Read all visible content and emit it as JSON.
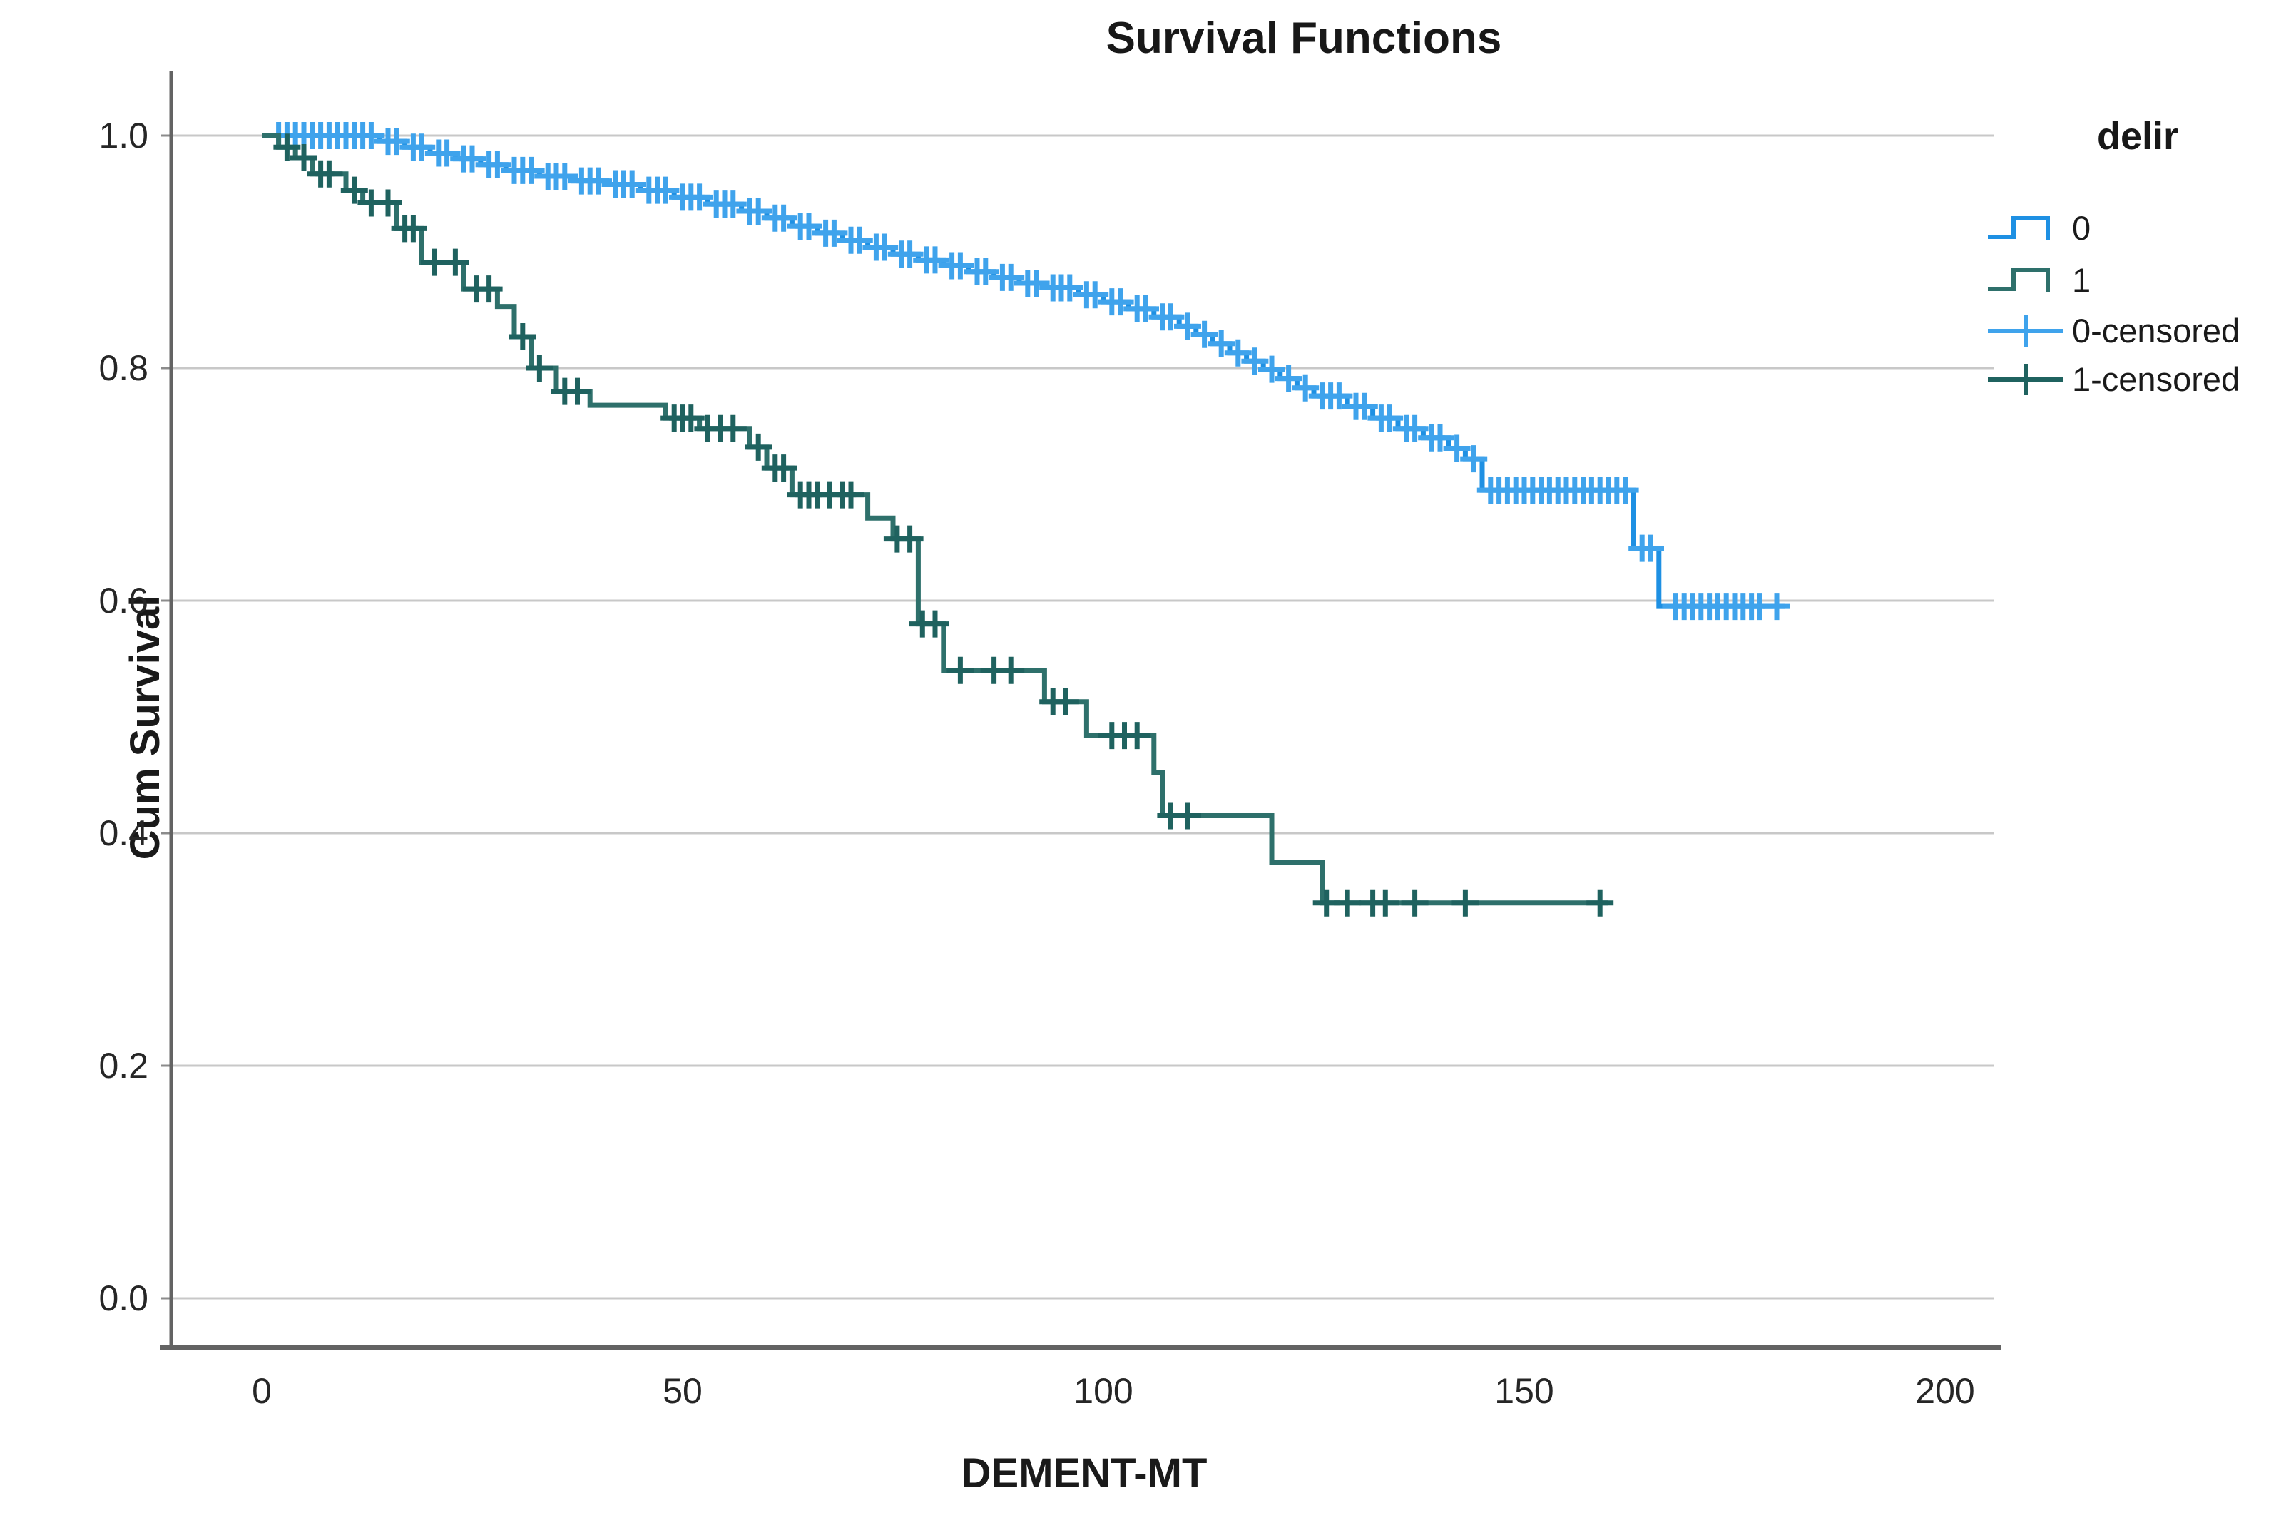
{
  "chart_data": {
    "type": "line",
    "subtype": "kaplan-meier-step",
    "title": "Survival Functions",
    "xlabel": "DEMENT-MT",
    "ylabel": "Cum Survival",
    "legend_title": "delir",
    "x_tick_labels": [
      "0",
      "50",
      "100",
      "150",
      "200"
    ],
    "x_tick_values": [
      0,
      50,
      100,
      150,
      200
    ],
    "y_tick_labels": [
      "1.0",
      "0.8",
      "0.6",
      "0.4",
      "0.2",
      "0.0"
    ],
    "y_tick_values": [
      1.0,
      0.8,
      0.6,
      0.4,
      0.2,
      0.0
    ],
    "xlim": [
      0,
      206
    ],
    "ylim": [
      0.0,
      1.04
    ],
    "grid": "horizontal",
    "legend_position": "right",
    "colors": {
      "grid": "#c8c8c8",
      "axis": "#636363",
      "text": "#1a1a1a",
      "series0": "#1E90E3",
      "series0_censor": "#3FA3EC",
      "series1": "#2E706B",
      "series1_censor": "#1F625F"
    },
    "legend": [
      {
        "label": "0",
        "marker": "step-line",
        "color_key": "series0"
      },
      {
        "label": "1",
        "marker": "step-line",
        "color_key": "series1"
      },
      {
        "label": "0-censored",
        "marker": "plus",
        "color_key": "series0_censor"
      },
      {
        "label": "1-censored",
        "marker": "plus",
        "color_key": "series1_censor"
      }
    ],
    "series": [
      {
        "name": "0",
        "color_key": "series0",
        "censor_color_key": "series0_censor",
        "end_t": 181,
        "steps": [
          [
            0,
            1.0
          ],
          [
            14,
            0.995
          ],
          [
            17,
            0.99
          ],
          [
            20,
            0.985
          ],
          [
            23,
            0.98
          ],
          [
            26,
            0.975
          ],
          [
            29,
            0.97
          ],
          [
            33,
            0.965
          ],
          [
            37,
            0.961
          ],
          [
            41,
            0.958
          ],
          [
            45,
            0.953
          ],
          [
            49,
            0.947
          ],
          [
            53,
            0.941
          ],
          [
            57,
            0.935
          ],
          [
            60,
            0.929
          ],
          [
            63,
            0.922
          ],
          [
            66,
            0.916
          ],
          [
            69,
            0.91
          ],
          [
            72,
            0.904
          ],
          [
            75,
            0.898
          ],
          [
            78,
            0.893
          ],
          [
            81,
            0.888
          ],
          [
            84,
            0.883
          ],
          [
            87,
            0.878
          ],
          [
            90,
            0.873
          ],
          [
            93,
            0.869
          ],
          [
            97,
            0.863
          ],
          [
            100,
            0.857
          ],
          [
            103,
            0.851
          ],
          [
            106,
            0.844
          ],
          [
            109,
            0.836
          ],
          [
            111,
            0.829
          ],
          [
            113,
            0.821
          ],
          [
            115,
            0.813
          ],
          [
            117,
            0.806
          ],
          [
            119,
            0.799
          ],
          [
            121,
            0.791
          ],
          [
            123,
            0.783
          ],
          [
            125,
            0.776
          ],
          [
            129,
            0.767
          ],
          [
            132,
            0.757
          ],
          [
            135,
            0.748
          ],
          [
            138,
            0.74
          ],
          [
            141,
            0.731
          ],
          [
            143,
            0.722
          ],
          [
            145,
            0.695
          ],
          [
            163,
            0.645
          ],
          [
            166,
            0.595
          ]
        ],
        "censors": [
          2,
          3,
          4,
          5,
          6,
          7,
          8,
          9,
          10,
          11,
          12,
          13,
          15,
          16,
          18,
          19,
          21,
          22,
          24,
          25,
          27,
          28,
          30,
          31,
          32,
          34,
          35,
          36,
          38,
          39,
          40,
          42,
          43,
          44,
          46,
          47,
          48,
          50,
          51,
          52,
          54,
          55,
          56,
          58,
          59,
          61,
          62,
          64,
          65,
          67,
          68,
          70,
          71,
          73,
          74,
          76,
          77,
          79,
          80,
          82,
          83,
          85,
          86,
          88,
          89,
          91,
          92,
          94,
          95,
          96,
          98,
          99,
          101,
          102,
          104,
          105,
          107,
          108,
          110,
          112,
          114,
          116,
          118,
          120,
          122,
          124,
          126,
          127,
          128,
          130,
          131,
          133,
          134,
          136,
          137,
          139,
          140,
          142,
          144,
          146,
          147,
          148,
          149,
          150,
          151,
          152,
          153,
          154,
          155,
          156,
          157,
          158,
          159,
          160,
          161,
          162,
          164,
          165,
          168,
          169,
          170,
          171,
          172,
          173,
          174,
          175,
          176,
          177,
          178,
          180
        ]
      },
      {
        "name": "1",
        "color_key": "series1",
        "censor_color_key": "series1_censor",
        "end_t": 160,
        "steps": [
          [
            0,
            1.0
          ],
          [
            2,
            0.99
          ],
          [
            4,
            0.981
          ],
          [
            6,
            0.967
          ],
          [
            10,
            0.953
          ],
          [
            12,
            0.942
          ],
          [
            16,
            0.92
          ],
          [
            19,
            0.891
          ],
          [
            24,
            0.868
          ],
          [
            28,
            0.853
          ],
          [
            30,
            0.827
          ],
          [
            32,
            0.8
          ],
          [
            35,
            0.78
          ],
          [
            39,
            0.768
          ],
          [
            48,
            0.757
          ],
          [
            52,
            0.748
          ],
          [
            58,
            0.732
          ],
          [
            60,
            0.714
          ],
          [
            63,
            0.691
          ],
          [
            72,
            0.671
          ],
          [
            75,
            0.653
          ],
          [
            78,
            0.58
          ],
          [
            81,
            0.54
          ],
          [
            93,
            0.513
          ],
          [
            98,
            0.484
          ],
          [
            106,
            0.452
          ],
          [
            107,
            0.415
          ],
          [
            120,
            0.375
          ],
          [
            126,
            0.34
          ]
        ],
        "censors": [
          3,
          5,
          7,
          8,
          11,
          13,
          15,
          17,
          18,
          20.5,
          23,
          25.5,
          27,
          31,
          33,
          36,
          37.5,
          49,
          50,
          51,
          53,
          54.5,
          56,
          59,
          61,
          62,
          64,
          65,
          66,
          67.5,
          69,
          70,
          75.5,
          77,
          78.5,
          80,
          83,
          87,
          89,
          94,
          95.5,
          101,
          102.5,
          104,
          108,
          110,
          126.5,
          129,
          132,
          133.5,
          137,
          143,
          159
        ]
      }
    ]
  }
}
